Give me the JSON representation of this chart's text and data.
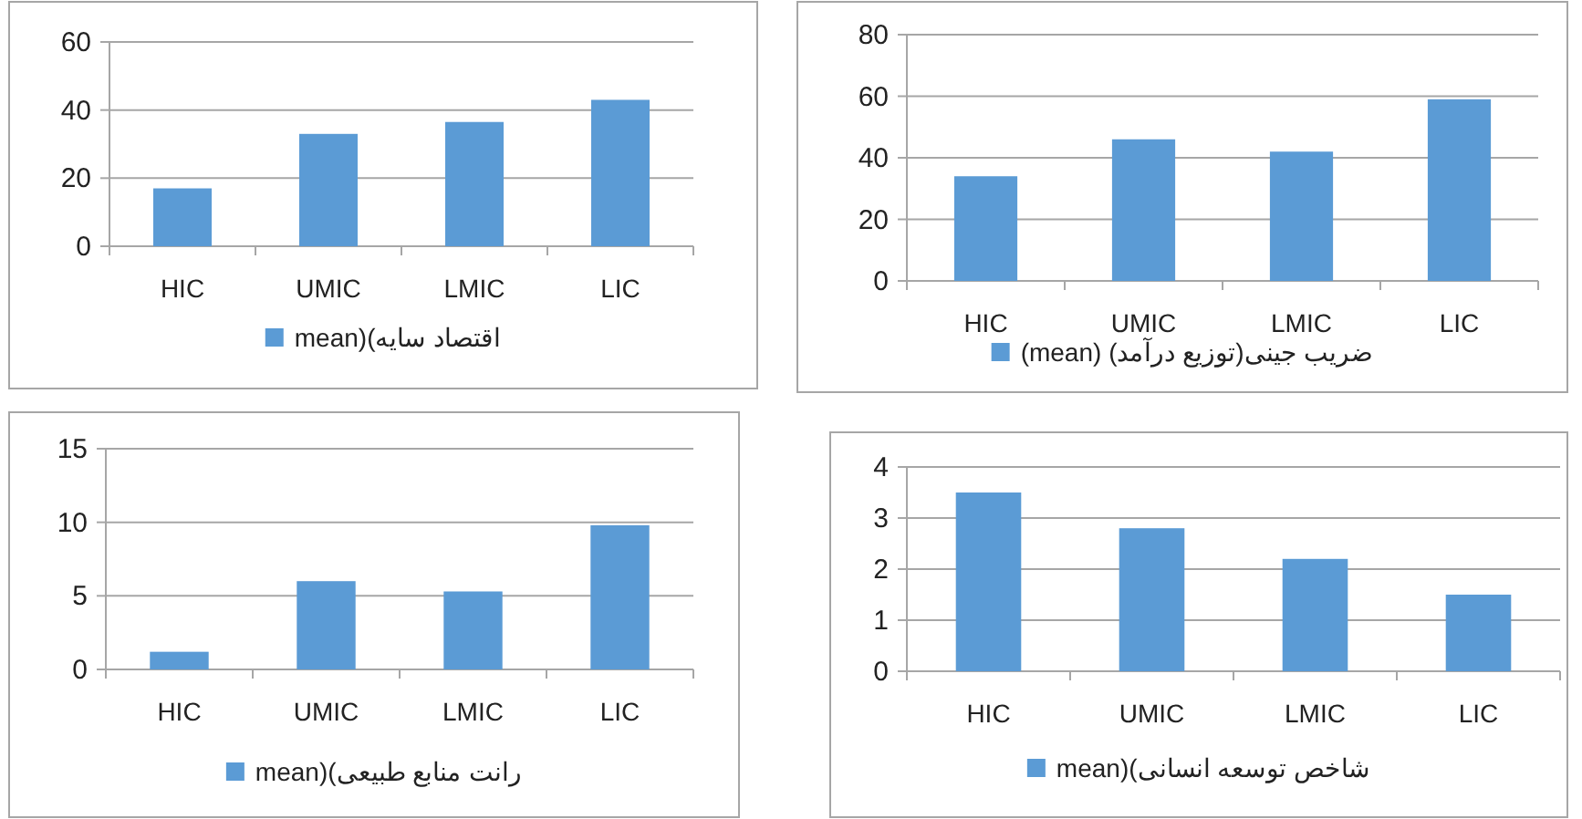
{
  "chart_data": [
    {
      "type": "bar",
      "categories": [
        "HIC",
        "UMIC",
        "LMIC",
        "LIC"
      ],
      "series": [
        {
          "name": "اقتصاد سایه)(mean",
          "color": "#5b9bd5",
          "values": [
            17,
            33,
            36.5,
            43
          ]
        }
      ],
      "ylim": [
        0,
        60
      ],
      "yticks": [
        0,
        20,
        40,
        60
      ],
      "grid": "y",
      "legend": "bottom"
    },
    {
      "type": "bar",
      "categories": [
        "HIC",
        "UMIC",
        "LMIC",
        "LIC"
      ],
      "series": [
        {
          "name": "ضریب جینی(توزیع درآمد) (mean)",
          "color": "#5b9bd5",
          "values": [
            34,
            46,
            42,
            59
          ]
        }
      ],
      "ylim": [
        0,
        80
      ],
      "yticks": [
        0,
        20,
        40,
        60,
        80
      ],
      "grid": "y",
      "legend": "bottom"
    },
    {
      "type": "bar",
      "categories": [
        "HIC",
        "UMIC",
        "LMIC",
        "LIC"
      ],
      "series": [
        {
          "name": "رانت منابع طبیعی)(mean",
          "color": "#5b9bd5",
          "values": [
            1.2,
            6,
            5.3,
            9.8
          ]
        }
      ],
      "ylim": [
        0,
        15
      ],
      "yticks": [
        0,
        5,
        10,
        15
      ],
      "grid": "y",
      "legend": "bottom"
    },
    {
      "type": "bar",
      "categories": [
        "HIC",
        "UMIC",
        "LMIC",
        "LIC"
      ],
      "series": [
        {
          "name": "شاخص توسعه انسانی)(mean",
          "color": "#5b9bd5",
          "values": [
            3.5,
            2.8,
            2.2,
            1.5
          ]
        }
      ],
      "ylim": [
        0,
        4
      ],
      "yticks": [
        0,
        1,
        2,
        3,
        4
      ],
      "grid": "y",
      "legend": "bottom"
    }
  ]
}
